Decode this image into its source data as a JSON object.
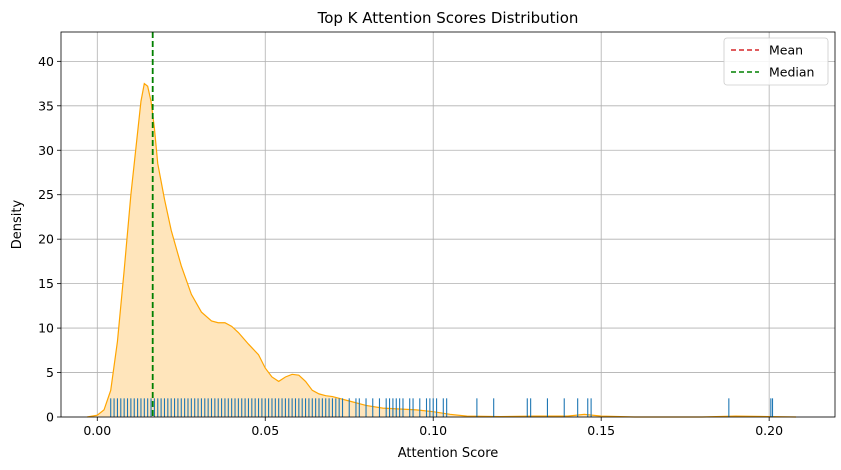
{
  "chart_data": {
    "type": "area",
    "title": "Top K Attention Scores Distribution",
    "xlabel": "Attention Score",
    "ylabel": "Density",
    "xlim": [
      -0.0108,
      0.2196
    ],
    "ylim": [
      0,
      43.3
    ],
    "x_ticks": [
      0.0,
      0.05,
      0.1,
      0.15,
      0.2
    ],
    "x_tick_labels": [
      "0.00",
      "0.05",
      "0.10",
      "0.15",
      "0.20"
    ],
    "y_ticks": [
      0,
      5,
      10,
      15,
      20,
      25,
      30,
      35,
      40
    ],
    "y_tick_labels": [
      "0",
      "5",
      "10",
      "15",
      "20",
      "25",
      "30",
      "35",
      "40"
    ],
    "grid": true,
    "legend_position": "top-right",
    "colors": {
      "kde_line": "#FFA500",
      "kde_fill": "#FFE5BB",
      "rug": "#1F77B4",
      "mean": "#D62728",
      "median": "#008000",
      "grid": "#B0B0B0"
    },
    "legend": [
      {
        "name": "Mean",
        "color": "#D62728",
        "style": "dashed"
      },
      {
        "name": "Median",
        "color": "#008000",
        "style": "dashed"
      }
    ],
    "mean": 0.0165,
    "median": 0.0165,
    "rug_height": 2.1,
    "series": [
      {
        "name": "",
        "kind": "kde",
        "x": [
          -0.003,
          0.0,
          0.002,
          0.004,
          0.006,
          0.008,
          0.01,
          0.012,
          0.013,
          0.014,
          0.015,
          0.016,
          0.017,
          0.018,
          0.02,
          0.022,
          0.025,
          0.028,
          0.031,
          0.034,
          0.036,
          0.038,
          0.04,
          0.042,
          0.045,
          0.048,
          0.05,
          0.052,
          0.054,
          0.056,
          0.058,
          0.06,
          0.062,
          0.064,
          0.066,
          0.068,
          0.07,
          0.075,
          0.08,
          0.085,
          0.09,
          0.095,
          0.1,
          0.105,
          0.11,
          0.12,
          0.13,
          0.14,
          0.145,
          0.15,
          0.16,
          0.18,
          0.19,
          0.2,
          0.208
        ],
        "y": [
          0.0,
          0.2,
          0.8,
          3.0,
          8.5,
          16.5,
          25.0,
          32.0,
          35.5,
          37.5,
          37.2,
          35.5,
          32.5,
          28.5,
          24.5,
          21.0,
          17.0,
          13.8,
          11.8,
          10.8,
          10.6,
          10.6,
          10.2,
          9.5,
          8.2,
          7.0,
          5.5,
          4.5,
          4.0,
          4.5,
          4.8,
          4.7,
          4.0,
          3.0,
          2.6,
          2.4,
          2.3,
          1.8,
          1.3,
          1.0,
          0.9,
          0.8,
          0.6,
          0.3,
          0.1,
          0.05,
          0.1,
          0.1,
          0.3,
          0.1,
          0.0,
          0.0,
          0.1,
          0.05,
          0.0
        ]
      },
      {
        "name": "",
        "kind": "rug",
        "values": [
          0.004,
          0.005,
          0.006,
          0.007,
          0.008,
          0.009,
          0.01,
          0.011,
          0.012,
          0.013,
          0.014,
          0.015,
          0.016,
          0.017,
          0.018,
          0.019,
          0.02,
          0.021,
          0.022,
          0.023,
          0.024,
          0.025,
          0.026,
          0.027,
          0.028,
          0.029,
          0.03,
          0.031,
          0.032,
          0.033,
          0.034,
          0.035,
          0.036,
          0.037,
          0.038,
          0.039,
          0.04,
          0.041,
          0.042,
          0.043,
          0.044,
          0.045,
          0.046,
          0.047,
          0.048,
          0.049,
          0.05,
          0.051,
          0.052,
          0.053,
          0.054,
          0.055,
          0.056,
          0.057,
          0.058,
          0.059,
          0.06,
          0.061,
          0.062,
          0.063,
          0.064,
          0.065,
          0.066,
          0.067,
          0.068,
          0.069,
          0.07,
          0.071,
          0.072,
          0.073,
          0.075,
          0.077,
          0.078,
          0.08,
          0.082,
          0.084,
          0.086,
          0.087,
          0.088,
          0.089,
          0.09,
          0.091,
          0.093,
          0.094,
          0.096,
          0.098,
          0.099,
          0.1,
          0.101,
          0.103,
          0.104,
          0.113,
          0.118,
          0.128,
          0.129,
          0.134,
          0.139,
          0.143,
          0.146,
          0.147,
          0.188,
          0.2005,
          0.201
        ]
      }
    ]
  }
}
